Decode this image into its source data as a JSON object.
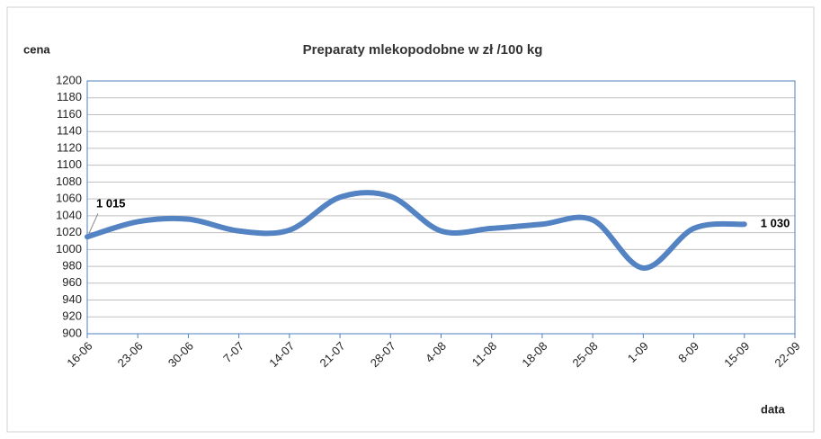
{
  "chart_data": {
    "type": "line",
    "title": "Preparaty mlekopodobne w zł /100 kg",
    "y_label": "cena",
    "x_label": "data",
    "categories": [
      "16-06",
      "23-06",
      "30-06",
      "7-07",
      "14-07",
      "21-07",
      "28-07",
      "4-08",
      "11-08",
      "18-08",
      "25-08",
      "1-09",
      "8-09",
      "15-09",
      "22-09"
    ],
    "series": [
      {
        "name": "Preparaty mlekopodobne",
        "color": "#5483c3",
        "values": [
          1015,
          1033,
          1036,
          1022,
          1023,
          1062,
          1063,
          1022,
          1025,
          1030,
          1035,
          978,
          1025,
          1030,
          null
        ],
        "value_labels": [
          "1 015",
          null,
          null,
          null,
          null,
          null,
          null,
          null,
          null,
          null,
          null,
          null,
          null,
          "1 030",
          null
        ]
      }
    ],
    "ylim": [
      900,
      1200
    ],
    "yticks": [
      900,
      920,
      940,
      960,
      980,
      1000,
      1020,
      1040,
      1060,
      1080,
      1100,
      1120,
      1140,
      1160,
      1180,
      1200
    ],
    "grid": true
  }
}
